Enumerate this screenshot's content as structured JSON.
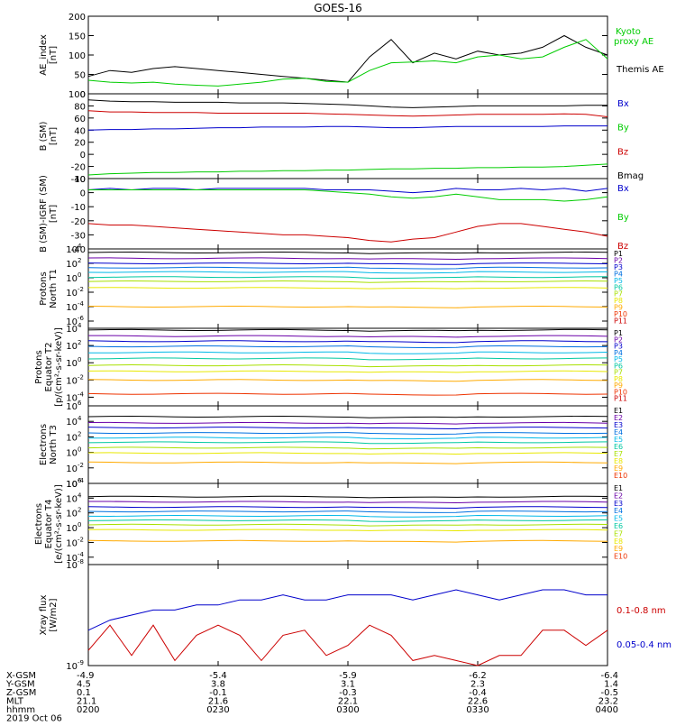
{
  "title": "GOES-16",
  "colors": {
    "black": "#000000",
    "green": "#00cc00",
    "blue": "#0000cc",
    "red": "#cc0000",
    "P1": "#000000",
    "P2": "#6a00a8",
    "P3": "#0000cc",
    "P4": "#0070e0",
    "P5": "#00b8e8",
    "P6": "#00c8a0",
    "P7": "#a8e000",
    "P8": "#e8e800",
    "P9": "#ffaa00",
    "P10": "#ee3300",
    "P11": "#cc0000"
  },
  "panels": [
    {
      "ylabel": [
        "AE_index",
        "[nT]"
      ],
      "yticks": [
        "200",
        "150",
        "100",
        "50",
        "0"
      ],
      "legend": [
        {
          "text": "Kyoto",
          "color": "green"
        },
        {
          "text": "proxy AE",
          "color": "green"
        },
        {
          "text": "Themis AE",
          "color": "black"
        }
      ]
    },
    {
      "ylabel": [
        "B (SM)",
        "[nT]"
      ],
      "yticks": [
        "100",
        "80",
        "60",
        "40",
        "20",
        "0",
        "-20",
        "-40"
      ],
      "legend": [
        {
          "text": "Bx",
          "color": "blue"
        },
        {
          "text": "By",
          "color": "green"
        },
        {
          "text": "Bz",
          "color": "red"
        },
        {
          "text": "Bmag",
          "color": "black"
        }
      ]
    },
    {
      "ylabel": [
        "B (SM)-IGRF (SM)",
        "[nT]"
      ],
      "yticks": [
        "10",
        "0",
        "-10",
        "-20",
        "-30",
        "-40"
      ],
      "legend": [
        {
          "text": "Bx",
          "color": "blue"
        },
        {
          "text": "By",
          "color": "green"
        },
        {
          "text": "Bz",
          "color": "red"
        }
      ]
    },
    {
      "ylabel": [
        "Protons",
        "North T1"
      ],
      "ytick_base": "10",
      "ytick_exps": [
        "4",
        "2",
        "0",
        "-2",
        "-4",
        "-6"
      ],
      "legend": [
        "P1",
        "P2",
        "P3",
        "P4",
        "P5",
        "P6",
        "P7",
        "P8",
        "P9",
        "P10",
        "P11"
      ]
    },
    {
      "ylabel": [
        "Protons",
        "Equator T2",
        "[p/(cm²-s-sr-keV)]"
      ],
      "ytick_base": "10",
      "ytick_exps": [
        "4",
        "2",
        "0",
        "-2",
        "-4"
      ],
      "legend": [
        "P1",
        "P2",
        "P3",
        "P4",
        "P5",
        "P6",
        "P7",
        "P8",
        "P9",
        "P10",
        "P11"
      ]
    },
    {
      "ylabel": [
        "Electrons",
        "North T3"
      ],
      "ytick_base": "10",
      "ytick_exps": [
        "6",
        "4",
        "2",
        "0",
        "-2",
        "-4"
      ],
      "legend": [
        "E1",
        "E2",
        "E3",
        "E4",
        "E5",
        "E6",
        "E7",
        "E8",
        "E9",
        "E10"
      ]
    },
    {
      "ylabel": [
        "Electrons",
        "Equator T4",
        "[e/(cm²-s-sr-keV)]"
      ],
      "ytick_base": "10",
      "ytick_exps": [
        "6",
        "4",
        "2",
        "0",
        "-2",
        "-4"
      ],
      "legend": [
        "E1",
        "E2",
        "E3",
        "E4",
        "E5",
        "E6",
        "E7",
        "E8",
        "E9",
        "E10"
      ]
    },
    {
      "ylabel": [
        "Xray flux",
        "[W/m2]"
      ],
      "ytick_base": "10",
      "ytick_exps": [
        "-8",
        "-9"
      ],
      "legend": [
        {
          "text": "0.1-0.8 nm",
          "color": "red"
        },
        {
          "text": "0.05-0.4 nm",
          "color": "blue"
        }
      ]
    }
  ],
  "ephemeris": {
    "row_labels": [
      "X-GSM",
      "Y-GSM",
      "Z-GSM",
      "MLT",
      "hhmm",
      "2019 Oct 06"
    ],
    "columns": [
      [
        "-4.9",
        "4.5",
        "0.1",
        "21.1",
        "0200"
      ],
      [
        "-5.4",
        "3.8",
        "-0.1",
        "21.6",
        "0230"
      ],
      [
        "-5.9",
        "3.1",
        "-0.3",
        "22.1",
        "0300"
      ],
      [
        "-6.2",
        "2.3",
        "-0.4",
        "22.6",
        "0330"
      ],
      [
        "-6.4",
        "1.4",
        "-0.5",
        "23.2",
        "0400"
      ]
    ]
  },
  "chart_data": {
    "type": "line",
    "title": "GOES-16",
    "date": "2019 Oct 06",
    "x_unit": "hhmm UT",
    "x_ticks": [
      "0200",
      "0230",
      "0300",
      "0330",
      "0400"
    ],
    "xlim": [
      "0200",
      "0400"
    ],
    "x": [
      "0200",
      "0205",
      "0210",
      "0215",
      "0220",
      "0225",
      "0230",
      "0235",
      "0240",
      "0245",
      "0250",
      "0255",
      "0300",
      "0305",
      "0310",
      "0315",
      "0320",
      "0325",
      "0330",
      "0335",
      "0340",
      "0345",
      "0350",
      "0355",
      "0400"
    ],
    "panels": [
      {
        "name": "AE_index",
        "unit": "nT",
        "scale": "linear",
        "ylim": [
          0,
          200
        ],
        "series": [
          {
            "name": "Themis AE",
            "color": "black",
            "values": [
              45,
              60,
              55,
              65,
              70,
              65,
              60,
              55,
              50,
              45,
              40,
              35,
              30,
              95,
              140,
              80,
              105,
              90,
              110,
              100,
              105,
              120,
              150,
              120,
              100
            ]
          },
          {
            "name": "Kyoto proxy AE",
            "color": "green",
            "values": [
              35,
              30,
              28,
              30,
              25,
              22,
              20,
              25,
              30,
              38,
              40,
              32,
              30,
              60,
              80,
              82,
              85,
              80,
              95,
              100,
              90,
              95,
              120,
              140,
              90
            ]
          }
        ]
      },
      {
        "name": "B (SM)",
        "unit": "nT",
        "scale": "linear",
        "ylim": [
          -40,
          100
        ],
        "series": [
          {
            "name": "Bmag",
            "color": "black",
            "values": [
              90,
              88,
              87,
              87,
              86,
              86,
              86,
              85,
              85,
              85,
              84,
              83,
              82,
              80,
              78,
              77,
              78,
              79,
              80,
              80,
              80,
              80,
              80,
              81,
              81
            ]
          },
          {
            "name": "Bz",
            "color": "red",
            "values": [
              72,
              70,
              70,
              69,
              69,
              69,
              68,
              68,
              68,
              68,
              68,
              67,
              66,
              65,
              64,
              63,
              64,
              65,
              66,
              66,
              66,
              66,
              67,
              66,
              62
            ]
          },
          {
            "name": "Bx",
            "color": "blue",
            "values": [
              40,
              41,
              41,
              42,
              42,
              43,
              44,
              44,
              45,
              45,
              45,
              46,
              46,
              45,
              44,
              44,
              45,
              46,
              46,
              46,
              46,
              46,
              47,
              47,
              47
            ]
          },
          {
            "name": "By",
            "color": "green",
            "values": [
              -34,
              -32,
              -31,
              -30,
              -30,
              -29,
              -29,
              -28,
              -28,
              -27,
              -27,
              -26,
              -26,
              -25,
              -24,
              -24,
              -23,
              -23,
              -22,
              -22,
              -21,
              -21,
              -20,
              -18,
              -16
            ]
          }
        ]
      },
      {
        "name": "B (SM)-IGRF (SM)",
        "unit": "nT",
        "scale": "linear",
        "ylim": [
          -40,
          10
        ],
        "series": [
          {
            "name": "Bx",
            "color": "blue",
            "values": [
              2,
              3,
              2,
              3,
              3,
              2,
              3,
              3,
              3,
              3,
              3,
              2,
              2,
              2,
              1,
              0,
              1,
              3,
              2,
              2,
              3,
              2,
              3,
              1,
              3
            ]
          },
          {
            "name": "By",
            "color": "green",
            "values": [
              2,
              2,
              2,
              2,
              2,
              2,
              2,
              2,
              2,
              2,
              2,
              1,
              0,
              -1,
              -3,
              -4,
              -3,
              -1,
              -3,
              -5,
              -5,
              -5,
              -6,
              -5,
              -3
            ]
          },
          {
            "name": "Bz",
            "color": "red",
            "values": [
              -22,
              -23,
              -23,
              -24,
              -25,
              -26,
              -27,
              -28,
              -29,
              -30,
              -30,
              -31,
              -32,
              -34,
              -35,
              -33,
              -32,
              -28,
              -24,
              -22,
              -22,
              -24,
              -26,
              -28,
              -31
            ]
          }
        ]
      },
      {
        "name": "Protons North T1",
        "unit": "p/(cm2-s-sr-keV)",
        "scale": "log",
        "ylim_exp": [
          -7,
          4
        ],
        "series_names": [
          "P1",
          "P2",
          "P3",
          "P4",
          "P5",
          "P6",
          "P7",
          "P8",
          "P9",
          "P10",
          "P11"
        ],
        "series_log10_levels": [
          3.5,
          2.7,
          2.0,
          1.4,
          0.8,
          0.1,
          -0.5,
          -1.4,
          -4,
          null,
          null
        ]
      },
      {
        "name": "Protons Equator T2",
        "unit": "p/(cm2-s-sr-keV)",
        "scale": "log",
        "ylim_exp": [
          -5,
          4
        ],
        "series_names": [
          "P1",
          "P2",
          "P3",
          "P4",
          "P5",
          "P6",
          "P7",
          "P8",
          "P9",
          "P10",
          "P11"
        ],
        "series_log10_levels": [
          3.8,
          3.1,
          2.5,
          1.9,
          1.2,
          0.5,
          -0.3,
          -1.0,
          -2.0,
          -3.6,
          null
        ]
      },
      {
        "name": "Electrons North T3",
        "unit": "e/(cm2-s-sr-keV)",
        "scale": "log",
        "ylim_exp": [
          -4,
          6
        ],
        "series_names": [
          "E1",
          "E2",
          "E3",
          "E4",
          "E5",
          "E6",
          "E7",
          "E8",
          "E9",
          "E10"
        ],
        "series_log10_levels": [
          4.6,
          3.8,
          3.2,
          2.5,
          1.9,
          1.3,
          0.6,
          -0.1,
          -1.3,
          null
        ]
      },
      {
        "name": "Electrons Equator T4",
        "unit": "e/(cm2-s-sr-keV)",
        "scale": "log",
        "ylim_exp": [
          -5,
          6
        ],
        "series_names": [
          "E1",
          "E2",
          "E3",
          "E4",
          "E5",
          "E6",
          "E7",
          "E8",
          "E9",
          "E10"
        ],
        "series_log10_levels": [
          4.2,
          3.5,
          2.8,
          2.2,
          1.6,
          1.0,
          0.4,
          -0.3,
          -1.8,
          null
        ]
      },
      {
        "name": "Xray flux",
        "unit": "W/m2",
        "scale": "log",
        "ylim_exp": [
          -9,
          -8
        ],
        "series": [
          {
            "name": "0.05-0.4 nm",
            "color": "blue",
            "log10_values": [
              -8.65,
              -8.55,
              -8.5,
              -8.45,
              -8.45,
              -8.4,
              -8.4,
              -8.35,
              -8.35,
              -8.3,
              -8.35,
              -8.35,
              -8.3,
              -8.3,
              -8.3,
              -8.35,
              -8.3,
              -8.25,
              -8.3,
              -8.35,
              -8.3,
              -8.25,
              -8.25,
              -8.3,
              -8.3
            ]
          },
          {
            "name": "0.1-0.8 nm",
            "color": "red",
            "log10_values": [
              -8.85,
              -8.6,
              -8.9,
              -8.6,
              -8.95,
              -8.7,
              -8.6,
              -8.7,
              -8.95,
              -8.7,
              -8.65,
              -8.9,
              -8.8,
              -8.6,
              -8.7,
              -8.95,
              -8.9,
              -8.95,
              -9.0,
              -8.9,
              -8.9,
              -8.65,
              -8.65,
              -8.8,
              -8.65
            ]
          }
        ]
      }
    ]
  }
}
